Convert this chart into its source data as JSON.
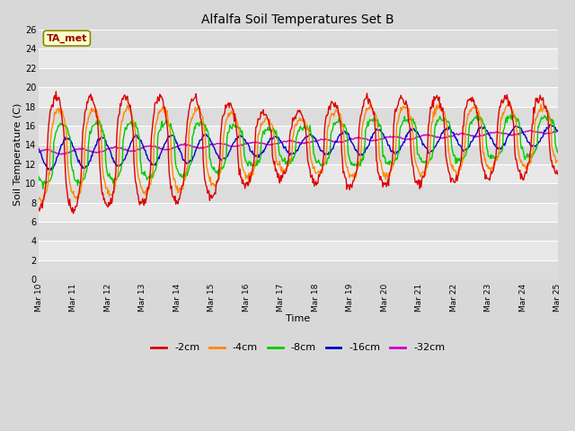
{
  "title": "Alfalfa Soil Temperatures Set B",
  "xlabel": "Time",
  "ylabel": "Soil Temperature (C)",
  "annotation": "TA_met",
  "ylim": [
    0,
    26
  ],
  "yticks": [
    0,
    2,
    4,
    6,
    8,
    10,
    12,
    14,
    16,
    18,
    20,
    22,
    24,
    26
  ],
  "xtick_labels": [
    "Mar 10",
    "Mar 11",
    "Mar 12",
    "Mar 13",
    "Mar 14",
    "Mar 15",
    "Mar 16",
    "Mar 17",
    "Mar 18",
    "Mar 19",
    "Mar 20",
    "Mar 21",
    "Mar 22",
    "Mar 23",
    "Mar 24",
    "Mar 25"
  ],
  "colors": {
    "-2cm": "#dd0000",
    "-4cm": "#ff8800",
    "-8cm": "#00cc00",
    "-16cm": "#0000cc",
    "-32cm": "#cc00cc"
  },
  "legend_labels": [
    "-2cm",
    "-4cm",
    "-8cm",
    "-16cm",
    "-32cm"
  ],
  "fig_bg": "#d8d8d8",
  "plot_bg": "#e8e8e8",
  "band_colors": [
    "#dcdcdc",
    "#e8e8e8"
  ]
}
